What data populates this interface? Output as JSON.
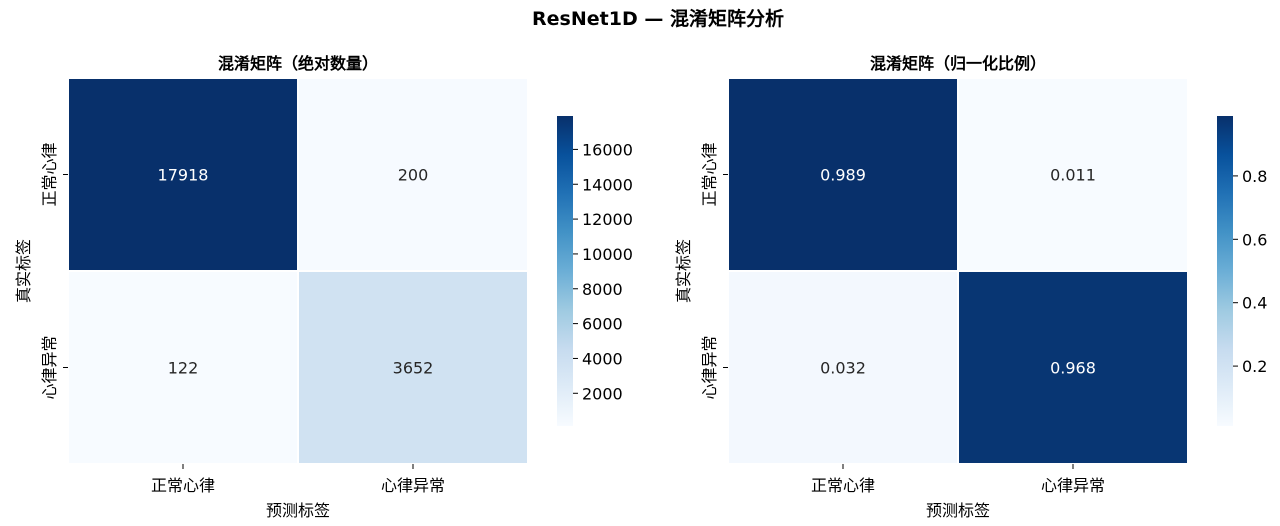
{
  "figure": {
    "title": "ResNet1D — 混淆矩阵分析"
  },
  "chart_data": [
    {
      "type": "heatmap",
      "title": "混淆矩阵（绝对数量）",
      "xlabel": "预测标签",
      "ylabel": "真实标签",
      "x_categories": [
        "正常心律",
        "心律异常"
      ],
      "y_categories": [
        "正常心律",
        "心律异常"
      ],
      "values": [
        [
          17918,
          200
        ],
        [
          122,
          3652
        ]
      ],
      "labels": [
        [
          "17918",
          "200"
        ],
        [
          "122",
          "3652"
        ]
      ],
      "colormap": "Blues",
      "vmin": 122,
      "vmax": 17918,
      "colorbar_ticks": [
        2000,
        4000,
        6000,
        8000,
        10000,
        12000,
        14000,
        16000
      ],
      "colorbar_tick_labels": [
        "2000",
        "4000",
        "6000",
        "8000",
        "10000",
        "12000",
        "14000",
        "16000"
      ]
    },
    {
      "type": "heatmap",
      "title": "混淆矩阵（归一化比例）",
      "xlabel": "预测标签",
      "ylabel": "真实标签",
      "x_categories": [
        "正常心律",
        "心律异常"
      ],
      "y_categories": [
        "正常心律",
        "心律异常"
      ],
      "values": [
        [
          0.989,
          0.011
        ],
        [
          0.032,
          0.968
        ]
      ],
      "labels": [
        [
          "0.989",
          "0.011"
        ],
        [
          "0.032",
          "0.968"
        ]
      ],
      "colormap": "Blues",
      "vmin": 0.011,
      "vmax": 0.989,
      "colorbar_ticks": [
        0.2,
        0.4,
        0.6,
        0.8
      ],
      "colorbar_tick_labels": [
        "0.2",
        "0.4",
        "0.6",
        "0.8"
      ]
    }
  ]
}
